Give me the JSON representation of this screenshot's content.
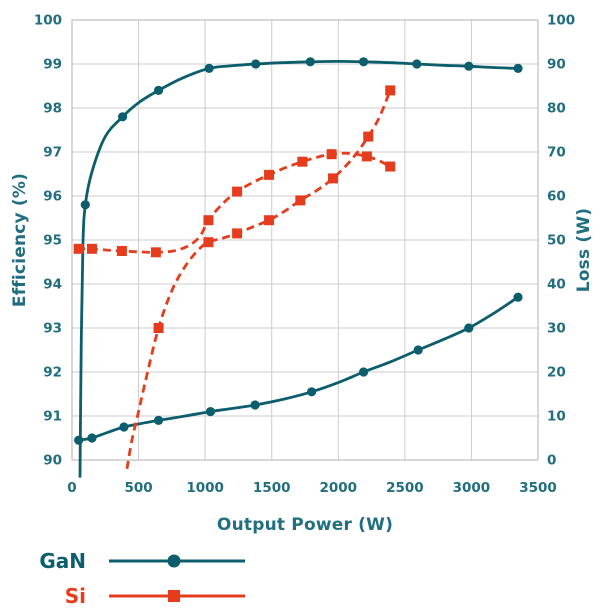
{
  "chart_data": {
    "type": "line",
    "title": "",
    "xlabel": "Output Power (W)",
    "ylabel_left": "Efficiency (%)",
    "ylabel_right": "Loss (W)",
    "xlim": [
      0,
      3500
    ],
    "x_ticks": [
      0,
      500,
      1000,
      1500,
      2000,
      2500,
      3000,
      3500
    ],
    "ylim_left": [
      90,
      100
    ],
    "y_ticks_left": [
      90,
      91,
      92,
      93,
      94,
      95,
      96,
      97,
      98,
      99,
      100
    ],
    "ylim_right": [
      0,
      100
    ],
    "y_ticks_right": [
      0,
      10,
      20,
      30,
      40,
      50,
      60,
      70,
      80,
      90,
      100
    ],
    "grid": true,
    "legend_position": "bottom-left",
    "colors": {
      "text": "#216e80",
      "grid": "#cccccc",
      "border": "#bfbfbf",
      "gan": "#0c5e6d",
      "si": "#e63c1e"
    },
    "series": [
      {
        "name": "GaN efficiency",
        "slug": "gan-efficiency",
        "axis": "left",
        "color": "#0c5e6d",
        "line_style": "solid",
        "marker": "circle",
        "points": [
          [
            100,
            95.8
          ],
          [
            380,
            97.8
          ],
          [
            650,
            98.4
          ],
          [
            1030,
            98.9
          ],
          [
            1380,
            99.0
          ],
          [
            1790,
            99.05
          ],
          [
            2190,
            99.05
          ],
          [
            2590,
            99.0
          ],
          [
            2980,
            98.95
          ],
          [
            3350,
            98.9
          ]
        ],
        "curve_points": [
          [
            60,
            89.6
          ],
          [
            70,
            92.8
          ],
          [
            82,
            94.9
          ],
          [
            100,
            95.8
          ],
          [
            150,
            96.55
          ],
          [
            250,
            97.35
          ],
          [
            380,
            97.8
          ],
          [
            500,
            98.12
          ],
          [
            650,
            98.4
          ],
          [
            830,
            98.68
          ],
          [
            1030,
            98.9
          ],
          [
            1200,
            98.96
          ],
          [
            1380,
            99.0
          ],
          [
            1580,
            99.03
          ],
          [
            1790,
            99.05
          ],
          [
            2000,
            99.06
          ],
          [
            2190,
            99.05
          ],
          [
            2400,
            99.03
          ],
          [
            2590,
            99.0
          ],
          [
            2790,
            98.97
          ],
          [
            2980,
            98.95
          ],
          [
            3160,
            98.92
          ],
          [
            3350,
            98.9
          ]
        ]
      },
      {
        "name": "GaN loss",
        "slug": "gan-loss",
        "axis": "right",
        "color": "#0c5e6d",
        "line_style": "solid",
        "marker": "circle",
        "points": [
          [
            50,
            4.5
          ],
          [
            150,
            5
          ],
          [
            390,
            7.5
          ],
          [
            650,
            9
          ],
          [
            1040,
            11
          ],
          [
            1375,
            12.5
          ],
          [
            1800,
            15.5
          ],
          [
            2190,
            20
          ],
          [
            2600,
            25
          ],
          [
            2980,
            30
          ],
          [
            3350,
            37
          ]
        ],
        "curve_points": [
          [
            30,
            4.4
          ],
          [
            50,
            4.5
          ],
          [
            150,
            5
          ],
          [
            270,
            6.3
          ],
          [
            390,
            7.5
          ],
          [
            520,
            8.3
          ],
          [
            650,
            9
          ],
          [
            850,
            10
          ],
          [
            1040,
            11
          ],
          [
            1200,
            11.7
          ],
          [
            1375,
            12.5
          ],
          [
            1600,
            13.9
          ],
          [
            1800,
            15.5
          ],
          [
            2000,
            17.6
          ],
          [
            2190,
            20
          ],
          [
            2400,
            22.4
          ],
          [
            2600,
            25
          ],
          [
            2790,
            27.4
          ],
          [
            2980,
            30
          ],
          [
            3160,
            33.2
          ],
          [
            3350,
            37
          ]
        ]
      },
      {
        "name": "Si efficiency",
        "slug": "si-efficiency",
        "axis": "left",
        "color": "#e63c1e",
        "line_style": "dashed",
        "marker": "square",
        "points": [
          [
            50,
            94.8
          ],
          [
            150,
            94.8
          ],
          [
            375,
            94.75
          ],
          [
            630,
            94.72
          ],
          [
            1025,
            95.45
          ],
          [
            1240,
            96.1
          ],
          [
            1480,
            96.48
          ],
          [
            1730,
            96.78
          ],
          [
            1950,
            96.95
          ],
          [
            2215,
            96.9
          ],
          [
            2390,
            96.67
          ]
        ],
        "curve_points": [
          [
            40,
            94.8
          ],
          [
            50,
            94.8
          ],
          [
            150,
            94.8
          ],
          [
            260,
            94.77
          ],
          [
            375,
            94.75
          ],
          [
            500,
            94.73
          ],
          [
            630,
            94.72
          ],
          [
            760,
            94.75
          ],
          [
            870,
            94.86
          ],
          [
            960,
            95.08
          ],
          [
            1025,
            95.45
          ],
          [
            1130,
            95.82
          ],
          [
            1240,
            96.1
          ],
          [
            1360,
            96.31
          ],
          [
            1480,
            96.48
          ],
          [
            1600,
            96.64
          ],
          [
            1730,
            96.78
          ],
          [
            1840,
            96.88
          ],
          [
            1950,
            96.95
          ],
          [
            2080,
            96.97
          ],
          [
            2215,
            96.9
          ],
          [
            2300,
            96.81
          ],
          [
            2390,
            96.67
          ]
        ]
      },
      {
        "name": "Si loss",
        "slug": "si-loss",
        "axis": "right",
        "color": "#e63c1e",
        "line_style": "dashed",
        "marker": "square",
        "points": [
          [
            650,
            30
          ],
          [
            1025,
            49.5
          ],
          [
            1240,
            51.5
          ],
          [
            1480,
            54.5
          ],
          [
            1715,
            59
          ],
          [
            1960,
            64
          ],
          [
            2225,
            73.5
          ],
          [
            2390,
            84
          ]
        ],
        "curve_points": [
          [
            413,
            -2
          ],
          [
            450,
            4.5
          ],
          [
            500,
            11
          ],
          [
            560,
            19
          ],
          [
            650,
            30
          ],
          [
            750,
            38.5
          ],
          [
            850,
            44
          ],
          [
            950,
            47.8
          ],
          [
            1025,
            49.5
          ],
          [
            1130,
            50.4
          ],
          [
            1240,
            51.5
          ],
          [
            1360,
            53
          ],
          [
            1480,
            54.5
          ],
          [
            1600,
            56.6
          ],
          [
            1715,
            59
          ],
          [
            1840,
            61.3
          ],
          [
            1960,
            64
          ],
          [
            2100,
            68.3
          ],
          [
            2225,
            73.5
          ],
          [
            2310,
            78
          ],
          [
            2390,
            84
          ]
        ]
      }
    ],
    "legend": [
      {
        "label": "GaN",
        "color": "#0c5e6d",
        "marker": "circle"
      },
      {
        "label": "Si",
        "color": "#e63c1e",
        "marker": "square"
      }
    ]
  }
}
